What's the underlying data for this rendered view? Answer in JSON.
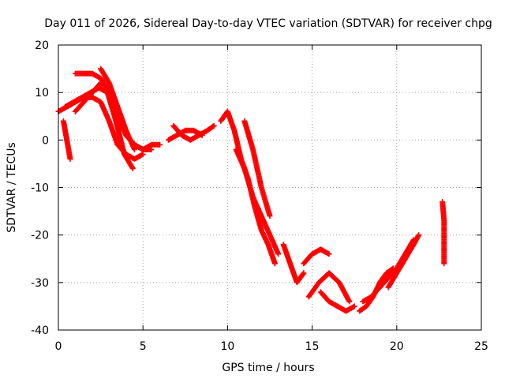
{
  "chart_data": {
    "type": "scatter",
    "title": "Day 011 of 2026, Sidereal Day-to-day VTEC variation (SDTVAR) for receiver chpg",
    "xlabel": "GPS time / hours",
    "ylabel": "SDTVAR / TECUs",
    "xlim": [
      0,
      25
    ],
    "ylim": [
      -40,
      20
    ],
    "xticks": [
      0,
      5,
      10,
      15,
      20,
      25
    ],
    "yticks": [
      -40,
      -30,
      -20,
      -10,
      0,
      10,
      20
    ],
    "grid": true,
    "marker": "+",
    "color": "#ff0000",
    "series": [
      {
        "name": "track-a",
        "x": [
          0.0,
          0.5,
          1.0,
          1.5,
          2.0,
          2.5,
          3.0,
          3.5,
          4.0,
          4.5,
          5.0
        ],
        "y": [
          6,
          7,
          8,
          9,
          9,
          8,
          4,
          -1,
          -3,
          -4,
          -3
        ]
      },
      {
        "name": "track-b",
        "x": [
          0.4,
          0.9,
          1.4,
          1.9,
          2.4,
          2.9,
          3.4,
          3.9,
          4.4
        ],
        "y": [
          7,
          8,
          9,
          10,
          11,
          10,
          4,
          -3,
          -6
        ]
      },
      {
        "name": "track-c",
        "x": [
          1.0,
          1.5,
          2.0,
          2.5,
          3.0,
          3.5,
          4.0,
          4.5,
          5.0,
          5.5
        ],
        "y": [
          6,
          8,
          10,
          12,
          11,
          6,
          1,
          -1,
          -2,
          -2
        ]
      },
      {
        "name": "track-d",
        "x": [
          1.0,
          1.5,
          2.0,
          2.5,
          3.0,
          3.5,
          4.0,
          4.5,
          5.0,
          5.5,
          6.0
        ],
        "y": [
          14,
          14,
          14,
          13,
          10,
          5,
          1,
          -1,
          -2,
          -1,
          -1
        ]
      },
      {
        "name": "track-e",
        "x": [
          2.5,
          3.0,
          3.5,
          4.0,
          4.5
        ],
        "y": [
          15,
          12,
          7,
          2,
          -2
        ]
      },
      {
        "name": "track-f",
        "x": [
          0.3,
          0.5,
          0.7
        ],
        "y": [
          4,
          0,
          -4
        ]
      },
      {
        "name": "track-g",
        "x": [
          6.8,
          7.3,
          7.8,
          8.3,
          8.8,
          9.2
        ],
        "y": [
          3,
          1,
          0,
          1,
          2,
          3
        ]
      },
      {
        "name": "track-h",
        "x": [
          6.5,
          7.0,
          7.5,
          8.0,
          8.5
        ],
        "y": [
          0,
          1,
          2,
          2,
          1
        ]
      },
      {
        "name": "track-i",
        "x": [
          9.6,
          10.0,
          10.4,
          10.8,
          11.2,
          11.6,
          12.0,
          12.4,
          12.8
        ],
        "y": [
          4,
          6,
          2,
          -4,
          -8,
          -14,
          -19,
          -22,
          -26
        ]
      },
      {
        "name": "track-j",
        "x": [
          10.5,
          11.0,
          11.5,
          12.0,
          12.5,
          13.0
        ],
        "y": [
          -2,
          -6,
          -12,
          -16,
          -20,
          -24
        ]
      },
      {
        "name": "track-k",
        "x": [
          11.0,
          11.5,
          12.0,
          12.5
        ],
        "y": [
          4,
          -2,
          -10,
          -16
        ]
      },
      {
        "name": "track-l",
        "x": [
          13.3,
          13.7,
          14.1,
          14.5
        ],
        "y": [
          -22,
          -26,
          -30,
          -28
        ]
      },
      {
        "name": "track-m",
        "x": [
          14.5,
          15.0,
          15.5,
          16.0
        ],
        "y": [
          -26,
          -24,
          -23,
          -24
        ]
      },
      {
        "name": "track-n",
        "x": [
          14.8,
          15.4,
          16.0,
          16.6,
          17.2
        ],
        "y": [
          -33,
          -30,
          -28,
          -30,
          -34
        ]
      },
      {
        "name": "track-o",
        "x": [
          15.5,
          16.0,
          16.5,
          17.0,
          17.5
        ],
        "y": [
          -32,
          -34,
          -35,
          -36,
          -35
        ]
      },
      {
        "name": "track-p",
        "x": [
          17.8,
          18.2,
          18.6,
          19.0,
          19.4,
          19.8
        ],
        "y": [
          -36,
          -35,
          -33,
          -30,
          -28,
          -27
        ]
      },
      {
        "name": "track-q",
        "x": [
          18.0,
          18.5,
          19.0,
          19.5,
          20.0,
          20.5,
          21.0
        ],
        "y": [
          -34,
          -33,
          -31,
          -29,
          -27,
          -24,
          -21
        ]
      },
      {
        "name": "track-r",
        "x": [
          19.5,
          20.0,
          20.5,
          21.0,
          21.3
        ],
        "y": [
          -31,
          -28,
          -25,
          -22,
          -20
        ]
      },
      {
        "name": "track-s",
        "x": [
          22.7,
          22.8,
          22.8
        ],
        "y": [
          -13,
          -17,
          -26
        ]
      }
    ]
  }
}
